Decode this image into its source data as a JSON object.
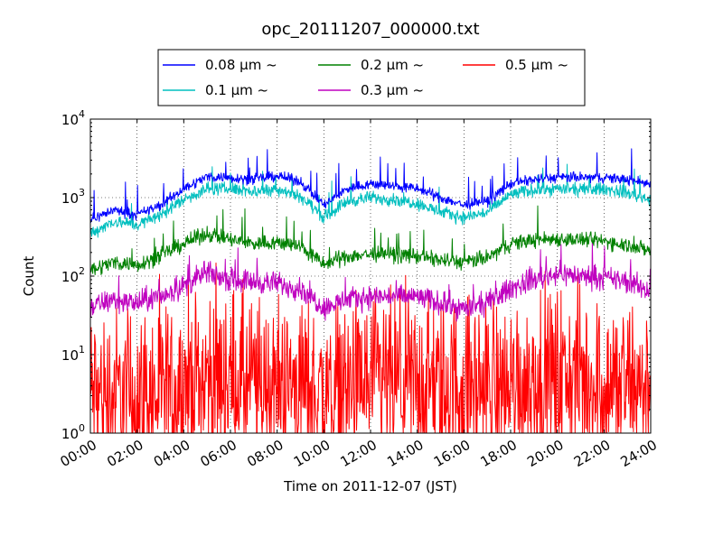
{
  "chart_data": {
    "type": "line",
    "title": "opc_20111207_000000.txt",
    "xlabel": "Time on 2011-12-07 (JST)",
    "ylabel": "Count",
    "y_scale": "log",
    "ylim": [
      1,
      10000
    ],
    "xlim": [
      "00:00",
      "24:00"
    ],
    "grid": true,
    "legend_position": "top, above plot",
    "x_tick_labels": [
      "00:00",
      "02:00",
      "04:00",
      "06:00",
      "08:00",
      "10:00",
      "12:00",
      "14:00",
      "16:00",
      "18:00",
      "20:00",
      "22:00",
      "24:00"
    ],
    "y_tick_labels": [
      {
        "base": "10",
        "exp": "0"
      },
      {
        "base": "10",
        "exp": "1"
      },
      {
        "base": "10",
        "exp": "2"
      },
      {
        "base": "10",
        "exp": "3"
      },
      {
        "base": "10",
        "exp": "4"
      }
    ],
    "x": [
      "00:00",
      "01:00",
      "02:00",
      "03:00",
      "04:00",
      "05:00",
      "06:00",
      "07:00",
      "08:00",
      "09:00",
      "10:00",
      "11:00",
      "12:00",
      "13:00",
      "14:00",
      "15:00",
      "16:00",
      "17:00",
      "18:00",
      "19:00",
      "20:00",
      "21:00",
      "22:00",
      "23:00",
      "24:00"
    ],
    "series": [
      {
        "name": "0.08 μm ~",
        "color": "#0000ff",
        "noise": 0.04,
        "values": [
          520,
          700,
          600,
          800,
          1300,
          1850,
          1800,
          1700,
          1900,
          1600,
          800,
          1300,
          1500,
          1400,
          1300,
          1000,
          800,
          900,
          1500,
          1700,
          1800,
          1800,
          1800,
          1700,
          1500
        ]
      },
      {
        "name": "0.1 μm ~",
        "color": "#00bfbf",
        "noise": 0.05,
        "values": [
          350,
          500,
          450,
          600,
          950,
          1300,
          1300,
          1200,
          1300,
          1050,
          560,
          900,
          1000,
          950,
          850,
          650,
          560,
          650,
          1100,
          1250,
          1300,
          1250,
          1300,
          1150,
          950
        ]
      },
      {
        "name": "0.2 μm ~",
        "color": "#008000",
        "noise": 0.06,
        "values": [
          120,
          150,
          140,
          180,
          260,
          350,
          290,
          260,
          270,
          240,
          140,
          180,
          190,
          190,
          180,
          160,
          150,
          170,
          260,
          290,
          300,
          290,
          280,
          250,
          210
        ]
      },
      {
        "name": "0.3 μm ~",
        "color": "#bf00bf",
        "noise": 0.09,
        "values": [
          40,
          50,
          45,
          55,
          75,
          110,
          90,
          85,
          80,
          70,
          40,
          50,
          55,
          55,
          55,
          45,
          38,
          45,
          70,
          90,
          110,
          100,
          95,
          85,
          65
        ]
      },
      {
        "name": "0.5 μm ~",
        "color": "#ff0000",
        "noise": 0.7,
        "values": [
          3,
          3,
          3,
          3,
          4,
          5,
          5,
          4,
          4,
          4,
          3,
          4,
          4,
          4,
          4,
          4,
          4,
          4,
          4,
          5,
          5,
          5,
          4,
          4,
          4
        ]
      }
    ]
  }
}
